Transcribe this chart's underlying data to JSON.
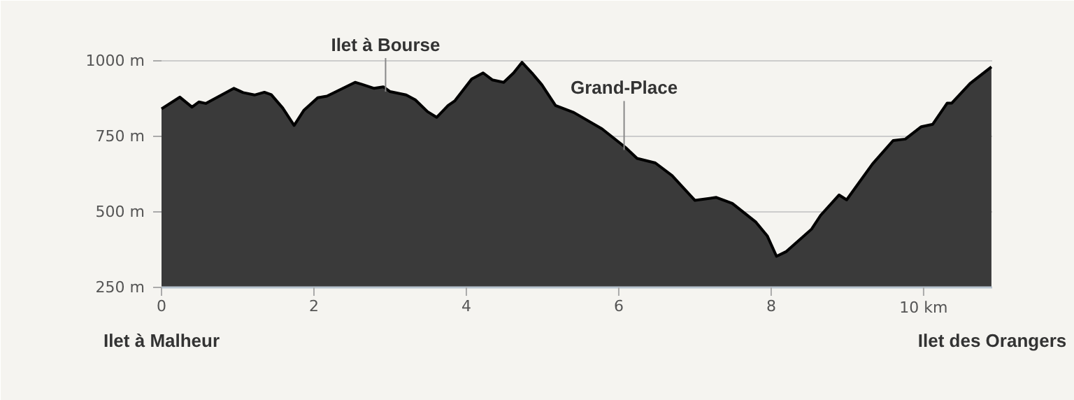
{
  "chart_data": {
    "type": "area",
    "x": [
      0,
      0.24,
      0.4,
      0.49,
      0.58,
      0.95,
      1.07,
      1.22,
      1.35,
      1.44,
      1.59,
      1.74,
      1.87,
      2.05,
      2.17,
      2.54,
      2.63,
      2.79,
      2.91,
      3.0,
      3.21,
      3.33,
      3.49,
      3.61,
      3.76,
      3.85,
      4.07,
      4.22,
      4.34,
      4.49,
      4.62,
      4.73,
      4.86,
      4.99,
      5.17,
      5.41,
      5.78,
      6.09,
      6.24,
      6.48,
      6.7,
      7.0,
      7.28,
      7.49,
      7.8,
      7.95,
      8.07,
      8.2,
      8.53,
      8.65,
      8.89,
      8.99,
      9.33,
      9.6,
      9.76,
      9.97,
      10.12,
      10.31,
      10.37,
      10.61,
      10.89
    ],
    "series": [
      {
        "color": "#3a3a3a",
        "values": [
          841,
          880,
          847,
          864,
          859,
          909,
          895,
          887,
          896,
          888,
          844,
          786,
          837,
          878,
          883,
          929,
          922,
          909,
          914,
          898,
          887,
          871,
          832,
          813,
          852,
          868,
          940,
          960,
          937,
          929,
          960,
          995,
          960,
          921,
          852,
          829,
          775,
          713,
          677,
          662,
          620,
          538,
          548,
          528,
          466,
          420,
          353,
          369,
          443,
          489,
          556,
          540,
          659,
          736,
          741,
          782,
          790,
          860,
          860,
          925,
          980
        ]
      }
    ],
    "xlim": [
      0,
      10.9
    ],
    "ylim": [
      250,
      1000
    ],
    "xticks": [
      0,
      2,
      4,
      6,
      8,
      {
        "value": 10,
        "label": "10 km"
      }
    ],
    "yticks": [
      {
        "value": 250,
        "label": "250 m"
      },
      {
        "value": 500,
        "label": "500 m"
      },
      {
        "value": 750,
        "label": "750 m"
      },
      {
        "value": 1000,
        "label": "1000 m"
      }
    ],
    "grid": "y",
    "annotations": [
      {
        "text": "Ilet à Bourse",
        "x": 2.94,
        "y": 898
      },
      {
        "text": "Grand-Place",
        "x": 6.07,
        "y": 705
      },
      "Ilet à Malheur",
      "Ilet des Orangers"
    ]
  }
}
